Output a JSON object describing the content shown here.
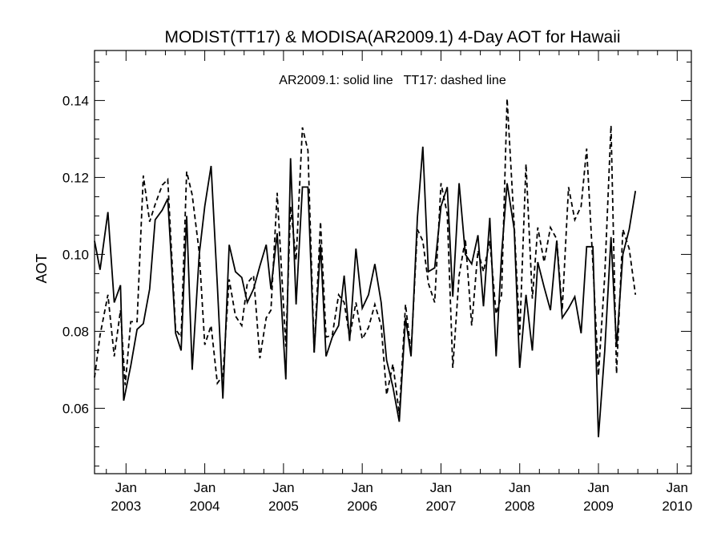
{
  "chart_data": {
    "type": "line",
    "title": "MODIST(TT17) & MODISA(AR2009.1) 4-Day AOT for Hawaii",
    "annotation": "AR2009.1: solid line   TT17: dashed line",
    "xlabel": "",
    "ylabel": "AOT",
    "xlim": [
      2002.6,
      2010.18
    ],
    "ylim": [
      0.043,
      0.153
    ],
    "y_ticks": [
      0.06,
      0.08,
      0.1,
      0.12,
      0.14
    ],
    "y_tick_labels": [
      "0.06",
      "0.08",
      "0.10",
      "0.12",
      "0.14"
    ],
    "x_ticks": [
      2003.0,
      2004.0,
      2005.0,
      2006.0,
      2007.0,
      2008.0,
      2009.0,
      2010.0
    ],
    "x_tick_month": [
      "Jan",
      "Jan",
      "Jan",
      "Jan",
      "Jan",
      "Jan",
      "Jan",
      "Jan"
    ],
    "x_tick_year": [
      "2003",
      "2004",
      "2005",
      "2006",
      "2007",
      "2008",
      "2009",
      "2010"
    ],
    "grid": false,
    "series": [
      {
        "name": "AR2009.1",
        "style": "solid",
        "color": "#000000",
        "points": [
          [
            2002.6,
            0.1035
          ],
          [
            2002.67,
            0.096
          ],
          [
            2002.77,
            0.111
          ],
          [
            2002.85,
            0.0875
          ],
          [
            2002.93,
            0.092
          ],
          [
            2002.97,
            0.062
          ],
          [
            2003.06,
            0.071
          ],
          [
            2003.14,
            0.0805
          ],
          [
            2003.22,
            0.082
          ],
          [
            2003.3,
            0.091
          ],
          [
            2003.37,
            0.109
          ],
          [
            2003.46,
            0.1115
          ],
          [
            2003.53,
            0.1145
          ],
          [
            2003.63,
            0.0795
          ],
          [
            2003.7,
            0.075
          ],
          [
            2003.77,
            0.11
          ],
          [
            2003.84,
            0.07
          ],
          [
            2003.93,
            0.1
          ],
          [
            2004.0,
            0.1125
          ],
          [
            2004.08,
            0.123
          ],
          [
            2004.16,
            0.092
          ],
          [
            2004.23,
            0.0625
          ],
          [
            2004.31,
            0.1025
          ],
          [
            2004.39,
            0.0955
          ],
          [
            2004.47,
            0.094
          ],
          [
            2004.54,
            0.0875
          ],
          [
            2004.62,
            0.091
          ],
          [
            2004.7,
            0.097
          ],
          [
            2004.78,
            0.1025
          ],
          [
            2004.84,
            0.091
          ],
          [
            2004.92,
            0.1055
          ],
          [
            2005.03,
            0.0675
          ],
          [
            2005.09,
            0.125
          ],
          [
            2005.16,
            0.087
          ],
          [
            2005.24,
            0.1175
          ],
          [
            2005.31,
            0.1175
          ],
          [
            2005.39,
            0.0745
          ],
          [
            2005.47,
            0.1025
          ],
          [
            2005.54,
            0.0735
          ],
          [
            2005.62,
            0.0785
          ],
          [
            2005.7,
            0.0815
          ],
          [
            2005.77,
            0.0945
          ],
          [
            2005.84,
            0.0775
          ],
          [
            2005.92,
            0.1015
          ],
          [
            2006.0,
            0.086
          ],
          [
            2006.08,
            0.0895
          ],
          [
            2006.16,
            0.0975
          ],
          [
            2006.24,
            0.0875
          ],
          [
            2006.31,
            0.0725
          ],
          [
            2006.39,
            0.0655
          ],
          [
            2006.47,
            0.0565
          ],
          [
            2006.55,
            0.0835
          ],
          [
            2006.62,
            0.0735
          ],
          [
            2006.7,
            0.1095
          ],
          [
            2006.77,
            0.128
          ],
          [
            2006.84,
            0.0955
          ],
          [
            2006.92,
            0.0965
          ],
          [
            2007.0,
            0.1125
          ],
          [
            2007.08,
            0.1175
          ],
          [
            2007.15,
            0.089
          ],
          [
            2007.23,
            0.1185
          ],
          [
            2007.31,
            0.1
          ],
          [
            2007.39,
            0.0975
          ],
          [
            2007.47,
            0.105
          ],
          [
            2007.54,
            0.0865
          ],
          [
            2007.62,
            0.1095
          ],
          [
            2007.7,
            0.0735
          ],
          [
            2007.77,
            0.1
          ],
          [
            2007.84,
            0.1185
          ],
          [
            2007.93,
            0.1065
          ],
          [
            2008.0,
            0.0705
          ],
          [
            2008.08,
            0.0895
          ],
          [
            2008.16,
            0.075
          ],
          [
            2008.23,
            0.098
          ],
          [
            2008.31,
            0.0915
          ],
          [
            2008.39,
            0.0855
          ],
          [
            2008.47,
            0.1035
          ],
          [
            2008.54,
            0.0835
          ],
          [
            2008.62,
            0.086
          ],
          [
            2008.7,
            0.089
          ],
          [
            2008.78,
            0.0795
          ],
          [
            2008.85,
            0.102
          ],
          [
            2008.93,
            0.102
          ],
          [
            2009.0,
            0.0525
          ],
          [
            2009.08,
            0.075
          ],
          [
            2009.16,
            0.1045
          ],
          [
            2009.23,
            0.076
          ],
          [
            2009.31,
            0.1
          ],
          [
            2009.39,
            0.1065
          ],
          [
            2009.47,
            0.1165
          ]
        ]
      },
      {
        "name": "TT17",
        "style": "dashed",
        "color": "#000000",
        "points": [
          [
            2002.6,
            0.068
          ],
          [
            2002.67,
            0.079
          ],
          [
            2002.77,
            0.0895
          ],
          [
            2002.85,
            0.0735
          ],
          [
            2002.93,
            0.0855
          ],
          [
            2002.99,
            0.066
          ],
          [
            2003.06,
            0.0825
          ],
          [
            2003.14,
            0.0825
          ],
          [
            2003.22,
            0.1205
          ],
          [
            2003.3,
            0.1085
          ],
          [
            2003.37,
            0.113
          ],
          [
            2003.46,
            0.118
          ],
          [
            2003.53,
            0.1195
          ],
          [
            2003.63,
            0.0805
          ],
          [
            2003.7,
            0.0785
          ],
          [
            2003.77,
            0.1215
          ],
          [
            2003.84,
            0.1155
          ],
          [
            2003.93,
            0.1005
          ],
          [
            2004.0,
            0.0765
          ],
          [
            2004.08,
            0.0815
          ],
          [
            2004.16,
            0.0665
          ],
          [
            2004.23,
            0.0685
          ],
          [
            2004.31,
            0.0935
          ],
          [
            2004.39,
            0.084
          ],
          [
            2004.47,
            0.0815
          ],
          [
            2004.54,
            0.0925
          ],
          [
            2004.62,
            0.0945
          ],
          [
            2004.7,
            0.073
          ],
          [
            2004.78,
            0.0835
          ],
          [
            2004.84,
            0.0855
          ],
          [
            2004.92,
            0.116
          ],
          [
            2005.03,
            0.076
          ],
          [
            2005.09,
            0.1125
          ],
          [
            2005.16,
            0.0985
          ],
          [
            2005.24,
            0.133
          ],
          [
            2005.31,
            0.127
          ],
          [
            2005.39,
            0.0745
          ],
          [
            2005.47,
            0.1085
          ],
          [
            2005.54,
            0.0785
          ],
          [
            2005.62,
            0.079
          ],
          [
            2005.7,
            0.0895
          ],
          [
            2005.77,
            0.0875
          ],
          [
            2005.84,
            0.0785
          ],
          [
            2005.92,
            0.0875
          ],
          [
            2006.0,
            0.078
          ],
          [
            2006.08,
            0.081
          ],
          [
            2006.16,
            0.087
          ],
          [
            2006.24,
            0.0815
          ],
          [
            2006.31,
            0.0635
          ],
          [
            2006.39,
            0.0715
          ],
          [
            2006.47,
            0.0585
          ],
          [
            2006.55,
            0.087
          ],
          [
            2006.62,
            0.0745
          ],
          [
            2006.7,
            0.1065
          ],
          [
            2006.77,
            0.1035
          ],
          [
            2006.84,
            0.0925
          ],
          [
            2006.92,
            0.0875
          ],
          [
            2007.0,
            0.1185
          ],
          [
            2007.08,
            0.1105
          ],
          [
            2007.15,
            0.0705
          ],
          [
            2007.23,
            0.0945
          ],
          [
            2007.31,
            0.104
          ],
          [
            2007.39,
            0.0815
          ],
          [
            2007.47,
            0.101
          ],
          [
            2007.54,
            0.0955
          ],
          [
            2007.62,
            0.1035
          ],
          [
            2007.7,
            0.0845
          ],
          [
            2007.77,
            0.0895
          ],
          [
            2007.84,
            0.1405
          ],
          [
            2007.93,
            0.1075
          ],
          [
            2008.0,
            0.079
          ],
          [
            2008.08,
            0.1235
          ],
          [
            2008.16,
            0.0885
          ],
          [
            2008.23,
            0.107
          ],
          [
            2008.31,
            0.098
          ],
          [
            2008.39,
            0.107
          ],
          [
            2008.47,
            0.104
          ],
          [
            2008.54,
            0.0855
          ],
          [
            2008.62,
            0.1175
          ],
          [
            2008.7,
            0.109
          ],
          [
            2008.78,
            0.1125
          ],
          [
            2008.85,
            0.1275
          ],
          [
            2008.93,
            0.0975
          ],
          [
            2009.0,
            0.0685
          ],
          [
            2009.08,
            0.0945
          ],
          [
            2009.16,
            0.1335
          ],
          [
            2009.23,
            0.069
          ],
          [
            2009.31,
            0.1065
          ],
          [
            2009.39,
            0.1015
          ],
          [
            2009.47,
            0.0895
          ]
        ]
      }
    ]
  }
}
